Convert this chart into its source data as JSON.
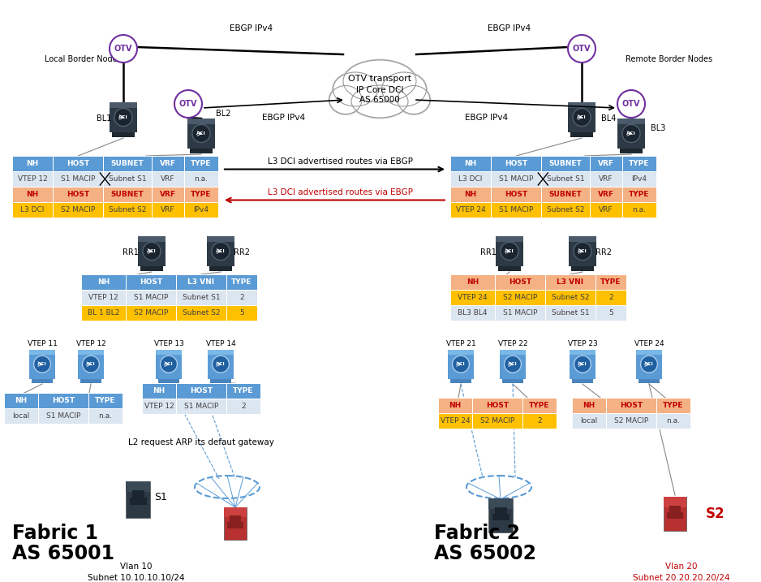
{
  "bg_color": "#ffffff",
  "fabric1_label": "Fabric 1",
  "fabric1_as": "AS 65001",
  "fabric2_label": "Fabric 2",
  "fabric2_as": "AS 65002",
  "vlan1": "Vlan 10",
  "subnet1": "Subnet 10.10.10.10/24",
  "vlan2": "Vlan 20",
  "subnet2": "Subnet 20.20.20.20/24",
  "local_border_nodes": "Local Border Nodes",
  "remote_border_nodes": "Remote Border Nodes",
  "cloud_label1": "OTV transport",
  "cloud_label2": "IP Core DCI",
  "cloud_label3": "AS 65000",
  "ebgp_ipv4": "EBGP IPv4",
  "l3_dci_fwd": "L3 DCI advertised routes via EBGP",
  "l3_dci_rev": "L3 DCI advertised routes via EBGP",
  "l2_arp": "L2 request ARP its defaut gateway",
  "color_header_blue": "#5b9bd5",
  "color_row_white": "#dce6f1",
  "color_row_yellow": "#ffc000",
  "color_header_orange": "#f4b183",
  "color_text_red": "#c00000",
  "color_text_dark": "#404040",
  "color_border_purple": "#7030a0",
  "color_switch_blue": "#5b9bd5",
  "color_switch_dark_body": "#2d3a45",
  "color_switch_dark_mid": "#3a4a56"
}
